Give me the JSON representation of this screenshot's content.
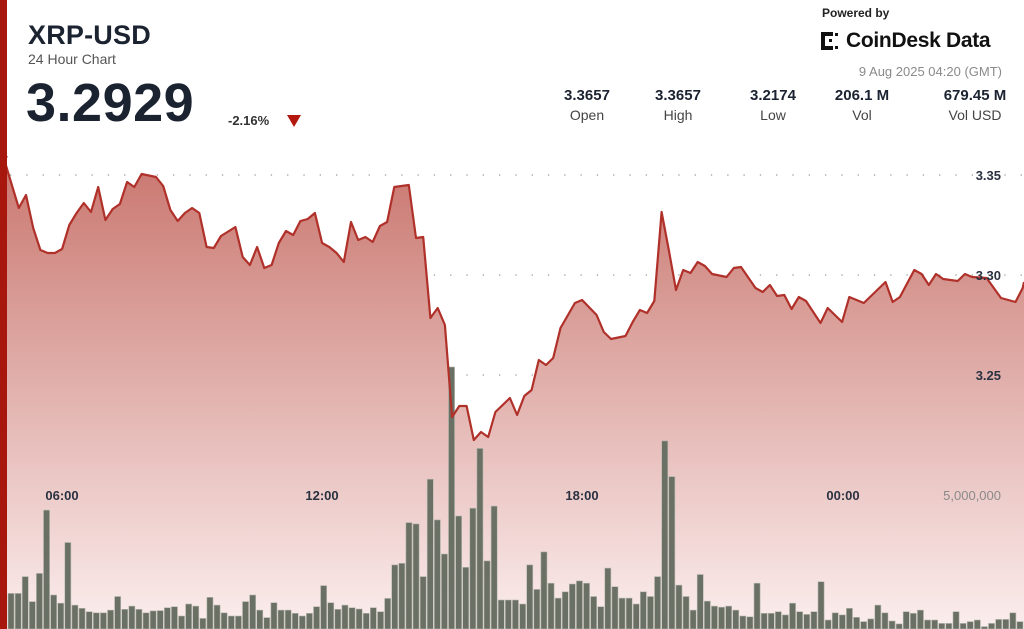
{
  "header": {
    "title": "XRP-USD",
    "subtitle": "24 Hour Chart",
    "price": "3.2929",
    "change": "-2.16%",
    "change_direction": "down",
    "change_color": "#b3170d"
  },
  "stats": [
    {
      "value": "3.3657",
      "label": "Open"
    },
    {
      "value": "3.3657",
      "label": "High"
    },
    {
      "value": "3.2174",
      "label": "Low"
    },
    {
      "value": "206.1 M",
      "label": "Vol"
    },
    {
      "value": "679.45 M",
      "label": "Vol USD"
    }
  ],
  "branding": {
    "powered_by": "Powered by",
    "logo_text": "CoinDesk Data",
    "date": "9 Aug 2025 04:20 (GMT)"
  },
  "colors": {
    "accent": "#a8170d",
    "line": "#b0302a",
    "fill_top": "#c9766e",
    "fill_bottom": "#fbeeee",
    "volume_bar": "#6b7064"
  },
  "chart_data": [
    {
      "type": "area",
      "ylim": [
        3.2174,
        3.3657
      ],
      "yticks": [
        "3.35",
        "3.30",
        "3.25"
      ],
      "xticks": [
        "06:00",
        "12:00",
        "18:00",
        "00:00"
      ],
      "grid": true,
      "x": [
        "04:40",
        "05:00",
        "05:10",
        "05:20",
        "05:30",
        "05:40",
        "05:50",
        "06:00",
        "06:10",
        "06:20",
        "06:30",
        "06:40",
        "06:50",
        "07:00",
        "07:10",
        "07:20",
        "07:30",
        "07:40",
        "07:50",
        "08:10",
        "08:20",
        "08:30",
        "08:40",
        "08:50",
        "09:00",
        "09:10",
        "09:20",
        "09:30",
        "09:40",
        "10:00",
        "10:10",
        "10:20",
        "10:30",
        "10:40",
        "10:50",
        "11:00",
        "11:10",
        "11:20",
        "11:30",
        "11:40",
        "11:50",
        "12:00",
        "12:10",
        "12:20",
        "12:30",
        "12:40",
        "12:50",
        "13:00",
        "13:10",
        "13:20",
        "13:30",
        "13:40",
        "14:00",
        "14:10",
        "14:20",
        "14:30",
        "14:40",
        "14:50",
        "15:00",
        "15:10",
        "15:20",
        "15:30",
        "15:40",
        "15:50",
        "16:00",
        "16:20",
        "16:30",
        "16:40",
        "16:50",
        "17:00",
        "17:10",
        "17:20",
        "17:30",
        "17:50",
        "18:00",
        "18:20",
        "18:30",
        "18:40",
        "19:00",
        "19:10",
        "19:20",
        "19:30",
        "19:40",
        "19:50",
        "20:00",
        "20:10",
        "20:20",
        "20:30",
        "20:40",
        "20:50",
        "21:00",
        "21:20",
        "21:30",
        "21:40",
        "22:00",
        "22:10",
        "22:20",
        "22:30",
        "22:40",
        "22:50",
        "23:00",
        "23:10",
        "23:30",
        "23:40",
        "00:00",
        "00:10",
        "00:30",
        "01:00",
        "01:10",
        "01:20",
        "01:40",
        "01:50",
        "02:00",
        "02:10",
        "02:20",
        "02:40",
        "02:50",
        "03:00",
        "03:20",
        "03:40",
        "04:00",
        "04:10"
      ],
      "y": [
        3.3575,
        3.3335,
        3.34,
        3.3235,
        3.3125,
        3.311,
        3.311,
        3.313,
        3.325,
        3.331,
        3.336,
        3.3315,
        3.344,
        3.3275,
        3.333,
        3.3355,
        3.3465,
        3.344,
        3.3505,
        3.349,
        3.3445,
        3.3325,
        3.327,
        3.331,
        3.3335,
        3.331,
        3.314,
        3.3135,
        3.3195,
        3.324,
        3.309,
        3.305,
        3.314,
        3.3035,
        3.305,
        3.316,
        3.322,
        3.32,
        3.327,
        3.328,
        3.331,
        3.316,
        3.314,
        3.311,
        3.3065,
        3.3265,
        3.3175,
        3.319,
        3.3165,
        3.3245,
        3.3265,
        3.344,
        3.345,
        3.3185,
        3.319,
        3.2785,
        3.2835,
        3.275,
        3.229,
        3.2345,
        3.2345,
        3.2175,
        3.2215,
        3.219,
        3.2315,
        3.2385,
        3.23,
        3.2395,
        3.2425,
        3.2575,
        3.255,
        3.2585,
        3.2735,
        3.286,
        3.2875,
        3.28,
        3.2715,
        3.268,
        3.2695,
        3.2765,
        3.2825,
        3.281,
        3.287,
        3.3315,
        3.3125,
        3.2925,
        3.3025,
        3.301,
        3.3065,
        3.3045,
        3.3005,
        3.299,
        3.3035,
        3.304,
        3.2935,
        3.2915,
        3.295,
        3.2895,
        3.29,
        3.283,
        3.289,
        3.287,
        3.276,
        3.2835,
        3.2765,
        3.289,
        3.286,
        3.2965,
        3.2865,
        3.289,
        3.3025,
        3.3005,
        3.295,
        3.3005,
        3.298,
        3.297,
        3.3005,
        3.299,
        3.2985,
        3.2885,
        3.2865,
        3.2935
      ]
    },
    {
      "type": "bar",
      "ylabel_tick": "5,000,000",
      "unit": "millions",
      "values": [
        1.34,
        1.34,
        1.97,
        1.03,
        2.09,
        4.47,
        1.28,
        0.97,
        3.25,
        0.9,
        0.78,
        0.65,
        0.61,
        0.61,
        0.71,
        1.22,
        0.74,
        0.86,
        0.74,
        0.61,
        0.68,
        0.69,
        0.8,
        0.84,
        0.49,
        0.94,
        0.86,
        0.4,
        1.19,
        0.9,
        0.61,
        0.49,
        0.49,
        1.03,
        1.28,
        0.71,
        0.43,
        0.99,
        0.71,
        0.71,
        0.59,
        0.49,
        0.59,
        0.84,
        1.63,
        0.99,
        0.74,
        0.9,
        0.8,
        0.75,
        0.59,
        0.8,
        0.65,
        1.15,
        2.41,
        2.47,
        4.0,
        3.95,
        1.97,
        5.63,
        4.1,
        2.82,
        9.85,
        4.25,
        2.32,
        4.54,
        6.79,
        2.56,
        4.62,
        1.09,
        1.09,
        1.09,
        0.94,
        2.41,
        1.49,
        2.9,
        1.72,
        1.16,
        1.4,
        1.69,
        1.81,
        1.72,
        1.22,
        0.84,
        2.29,
        1.59,
        1.16,
        1.16,
        0.94,
        1.4,
        1.22,
        1.97,
        7.07,
        5.73,
        1.65,
        1.22,
        0.71,
        2.05,
        1.05,
        0.86,
        0.82,
        0.86,
        0.71,
        0.49,
        0.46,
        1.72,
        0.59,
        0.59,
        0.65,
        0.53,
        0.97,
        0.65,
        0.55,
        0.65,
        1.78,
        0.34,
        0.61,
        0.53,
        0.78,
        0.44,
        0.28,
        0.38,
        0.9,
        0.61,
        0.3,
        0.19,
        0.65,
        0.59,
        0.71,
        0.34,
        0.34,
        0.21,
        0.21,
        0.65,
        0.21,
        0.28,
        0.34,
        0.09,
        0.21,
        0.36,
        0.36,
        0.61,
        0.28
      ]
    }
  ]
}
